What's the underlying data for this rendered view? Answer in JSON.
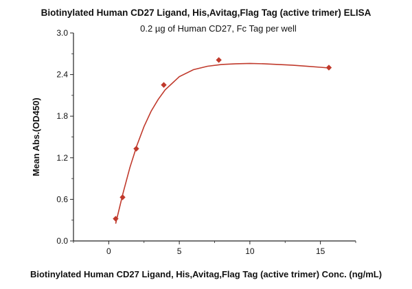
{
  "chart_data": {
    "type": "scatter",
    "title": "Biotinylated Human CD27 Ligand, His,Avitag,Flag Tag (active trimer) ELISA",
    "subtitle": "0.2 µg of Human CD27, Fc Tag per well",
    "xlabel": "Biotinylated Human CD27 Ligand, His,Avitag,Flag Tag (active trimer) Conc. (ng/mL)",
    "ylabel": "Mean Abs.(OD450)",
    "xlim": [
      -2.5,
      17.5
    ],
    "ylim": [
      0,
      3.0
    ],
    "x_ticks": [
      0,
      5,
      10,
      15
    ],
    "y_ticks": [
      0.0,
      0.6,
      1.2,
      1.8,
      2.4,
      3.0
    ],
    "x_tick_labels": [
      "0",
      "5",
      "10",
      "15"
    ],
    "y_tick_labels": [
      "0.0",
      "0.6",
      "1.2",
      "1.8",
      "2.4",
      "3.0"
    ],
    "grid": false,
    "colors": {
      "series": "#c0392b"
    },
    "series": [
      {
        "points": [
          {
            "x": 0.49,
            "y": 0.32
          },
          {
            "x": 0.98,
            "y": 0.63
          },
          {
            "x": 1.95,
            "y": 1.33
          },
          {
            "x": 3.9,
            "y": 2.25
          },
          {
            "x": 7.8,
            "y": 2.61
          },
          {
            "x": 15.6,
            "y": 2.5
          }
        ],
        "fit_curve": [
          {
            "x": 0.49,
            "y": 0.25
          },
          {
            "x": 1.0,
            "y": 0.68
          },
          {
            "x": 1.5,
            "y": 1.06
          },
          {
            "x": 2.0,
            "y": 1.38
          },
          {
            "x": 2.5,
            "y": 1.65
          },
          {
            "x": 3.0,
            "y": 1.87
          },
          {
            "x": 3.5,
            "y": 2.04
          },
          {
            "x": 4.0,
            "y": 2.18
          },
          {
            "x": 5.0,
            "y": 2.37
          },
          {
            "x": 6.0,
            "y": 2.47
          },
          {
            "x": 7.0,
            "y": 2.52
          },
          {
            "x": 8.0,
            "y": 2.545
          },
          {
            "x": 9.0,
            "y": 2.555
          },
          {
            "x": 10.0,
            "y": 2.56
          },
          {
            "x": 11.0,
            "y": 2.555
          },
          {
            "x": 12.0,
            "y": 2.545
          },
          {
            "x": 13.0,
            "y": 2.535
          },
          {
            "x": 14.0,
            "y": 2.52
          },
          {
            "x": 15.0,
            "y": 2.505
          },
          {
            "x": 15.6,
            "y": 2.495
          }
        ]
      }
    ]
  }
}
